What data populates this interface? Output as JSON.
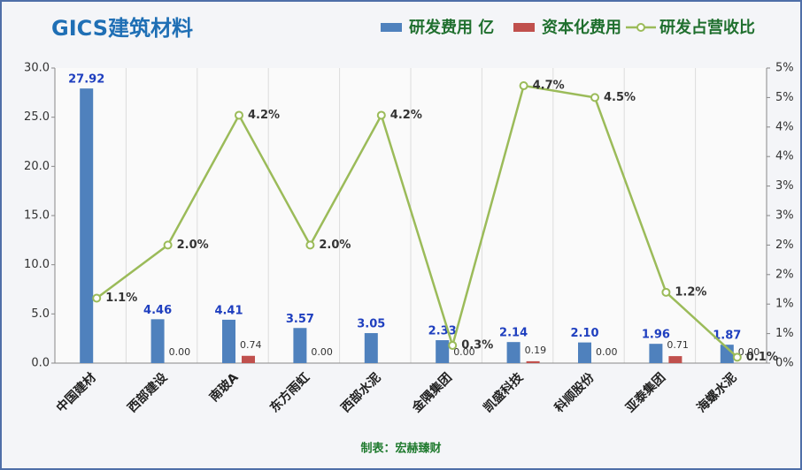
{
  "chart_data": {
    "type": "bar-line",
    "title": "GICS建筑材料",
    "source": "制表：宏赫臻财",
    "categories": [
      "中国建材",
      "西部建设",
      "南玻A",
      "东方雨虹",
      "西部水泥",
      "金隅集团",
      "凯盛科技",
      "科顺股份",
      "亚泰集团",
      "海螺水泥"
    ],
    "series": [
      {
        "name": "研发费用 亿",
        "color": "#4f81bd",
        "type": "bar",
        "values": [
          27.92,
          4.46,
          4.41,
          3.57,
          3.05,
          2.33,
          2.14,
          2.1,
          1.96,
          1.87
        ],
        "value_labels": [
          "27.92",
          "4.46",
          "4.41",
          "3.57",
          "3.05",
          "2.33",
          "2.14",
          "2.10",
          "1.96",
          "1.87"
        ]
      },
      {
        "name": "资本化费用",
        "color": "#c0504d",
        "type": "bar",
        "values": [
          null,
          0,
          0.74,
          0,
          null,
          0,
          0.19,
          0,
          0.71,
          0
        ],
        "value_labels": [
          null,
          "0.00",
          "0.74",
          "0.00",
          null,
          "0.00",
          "0.19",
          "0.00",
          "0.71",
          "0.00"
        ]
      },
      {
        "name": "研发占营收比",
        "color": "#9bbb59",
        "type": "line",
        "axis": "y2",
        "values": [
          1.1,
          2.0,
          4.2,
          2.0,
          4.2,
          0.3,
          4.7,
          4.5,
          1.2,
          0.1
        ],
        "value_labels": [
          "1.1%",
          "2.0%",
          "4.2%",
          "2.0%",
          "4.2%",
          "0.3%",
          "4.7%",
          "4.5%",
          "1.2%",
          "0.1%"
        ]
      }
    ],
    "ylim": [
      0,
      30
    ],
    "yticks": [
      {
        "value": 0,
        "label": "0.0"
      },
      {
        "value": 5,
        "label": "5.0"
      },
      {
        "value": 10,
        "label": "10.0"
      },
      {
        "value": 15,
        "label": "15.0"
      },
      {
        "value": 20,
        "label": "20.0"
      },
      {
        "value": 25,
        "label": "25.0"
      },
      {
        "value": 30,
        "label": "30.0"
      }
    ],
    "y2lim": [
      0,
      5
    ],
    "y2ticks": [
      {
        "value": 0,
        "label": "0%"
      },
      {
        "value": 0.5,
        "label": "1%"
      },
      {
        "value": 1,
        "label": "1%"
      },
      {
        "value": 1.5,
        "label": "2%"
      },
      {
        "value": 2,
        "label": "2%"
      },
      {
        "value": 2.5,
        "label": "3%"
      },
      {
        "value": 3,
        "label": "3%"
      },
      {
        "value": 3.5,
        "label": "4%"
      },
      {
        "value": 4,
        "label": "4%"
      },
      {
        "value": 4.5,
        "label": "5%"
      },
      {
        "value": 5,
        "label": "5%"
      }
    ],
    "grid": true
  }
}
